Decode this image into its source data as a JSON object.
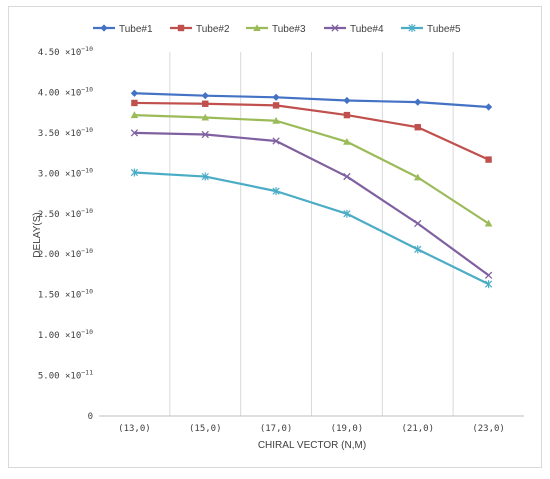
{
  "chart_data": {
    "type": "line",
    "title": "",
    "xlabel": "CHIRAL VECTOR (N,M)",
    "ylabel": "DELAY(S)",
    "categories": [
      "(13,0)",
      "(15,0)",
      "(17,0)",
      "(19,0)",
      "(21,0)",
      "(23,0)"
    ],
    "ylim": [
      0,
      4.5e-10
    ],
    "y_ticks": [
      {
        "value": 0,
        "mant": "0",
        "exp": ""
      },
      {
        "value": 5e-11,
        "mant": "5.00 ×10",
        "exp": "−11"
      },
      {
        "value": 1e-10,
        "mant": "1.00 ×10",
        "exp": "−10"
      },
      {
        "value": 1.5e-10,
        "mant": "1.50 ×10",
        "exp": "−10"
      },
      {
        "value": 2e-10,
        "mant": "2.00 ×10",
        "exp": "−10"
      },
      {
        "value": 2.5e-10,
        "mant": "2.50 ×10",
        "exp": "−10"
      },
      {
        "value": 3e-10,
        "mant": "3.00 ×10",
        "exp": "−10"
      },
      {
        "value": 3.5e-10,
        "mant": "3.50 ×10",
        "exp": "−10"
      },
      {
        "value": 4e-10,
        "mant": "4.00 ×10",
        "exp": "−10"
      },
      {
        "value": 4.5e-10,
        "mant": "4.50 ×10",
        "exp": "−10"
      }
    ],
    "grid": "vertical",
    "legend_position": "top",
    "series": [
      {
        "name": "Tube#1",
        "color": "#4472c4",
        "marker": "diamond",
        "values": [
          3.99e-10,
          3.96e-10,
          3.94e-10,
          3.9e-10,
          3.88e-10,
          3.82e-10
        ]
      },
      {
        "name": "Tube#2",
        "color": "#c0504d",
        "marker": "square",
        "values": [
          3.87e-10,
          3.86e-10,
          3.84e-10,
          3.72e-10,
          3.57e-10,
          3.17e-10
        ]
      },
      {
        "name": "Tube#3",
        "color": "#9bbb59",
        "marker": "triangle",
        "values": [
          3.72e-10,
          3.69e-10,
          3.65e-10,
          3.39e-10,
          2.95e-10,
          2.38e-10
        ]
      },
      {
        "name": "Tube#4",
        "color": "#7f60a0",
        "marker": "x",
        "values": [
          3.5e-10,
          3.48e-10,
          3.4e-10,
          2.96e-10,
          2.38e-10,
          1.74e-10
        ]
      },
      {
        "name": "Tube#5",
        "color": "#4bacc6",
        "marker": "star",
        "values": [
          3.01e-10,
          2.96e-10,
          2.78e-10,
          2.5e-10,
          2.06e-10,
          1.63e-10
        ]
      }
    ]
  }
}
